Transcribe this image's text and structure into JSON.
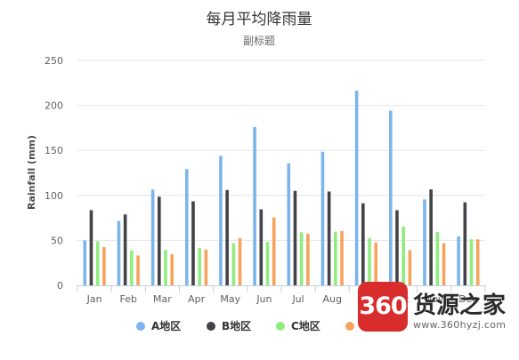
{
  "chart_data": {
    "type": "bar",
    "title": "每月平均降雨量",
    "subtitle": "副标题",
    "ylabel": "Rainfall (mm)",
    "ylim": [
      0,
      250
    ],
    "yticks": [
      0,
      50,
      100,
      150,
      200,
      250
    ],
    "grid": true,
    "legend_position": "bottom-center",
    "categories": [
      "Jan",
      "Feb",
      "Mar",
      "Apr",
      "May",
      "Jun",
      "Jul",
      "Aug",
      "Sep",
      "Oct",
      "Nov",
      "Dec"
    ],
    "series": [
      {
        "name": "A地区",
        "color": "#7cb5ec",
        "values": [
          49.9,
          71.5,
          106.4,
          129.2,
          144.0,
          176.0,
          135.6,
          148.5,
          216.4,
          194.1,
          95.6,
          54.4
        ]
      },
      {
        "name": "B地区",
        "color": "#434348",
        "values": [
          83.6,
          78.8,
          98.5,
          93.4,
          106.0,
          84.5,
          105.0,
          104.3,
          91.2,
          83.5,
          106.6,
          92.3
        ]
      },
      {
        "name": "C地区",
        "color": "#90ed7d",
        "values": [
          48.9,
          38.8,
          39.3,
          41.4,
          47.0,
          48.3,
          59.0,
          59.6,
          52.4,
          65.2,
          59.3,
          51.2
        ]
      },
      {
        "name": "D地区",
        "color": "#f7a35c",
        "values": [
          42.4,
          33.2,
          34.5,
          39.7,
          52.6,
          75.5,
          57.4,
          60.4,
          47.6,
          39.1,
          46.8,
          51.1
        ]
      }
    ]
  },
  "watermark": {
    "badge": "360",
    "title": "货源之家",
    "url": "www.360hyzj.com"
  }
}
